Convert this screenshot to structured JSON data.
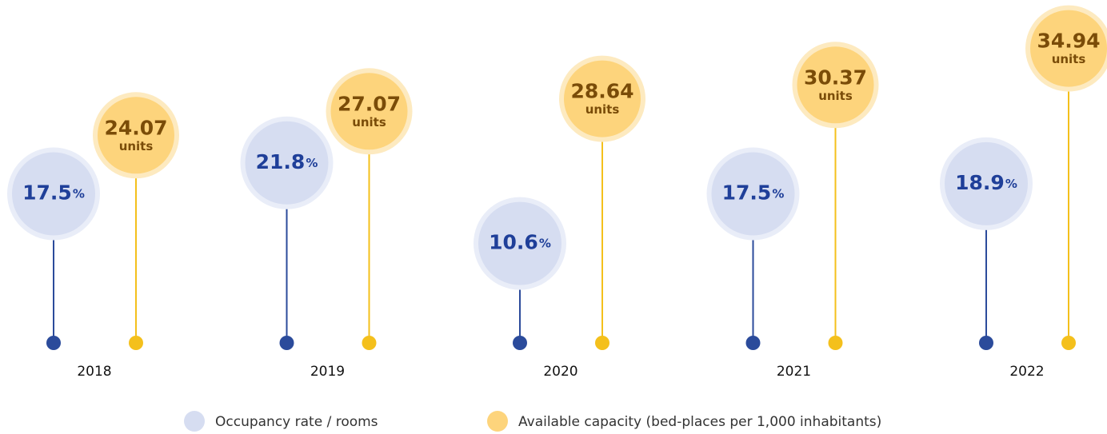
{
  "chart_data": {
    "type": "lollipop",
    "categories": [
      "2018",
      "2019",
      "2020",
      "2021",
      "2022"
    ],
    "series": [
      {
        "name": "Occupancy rate / rooms",
        "color": "#d6ddf1",
        "unit": "%",
        "values": [
          17.5,
          21.8,
          10.6,
          17.5,
          18.9
        ]
      },
      {
        "name": "Available capacity (bed-places per 1,000 inhabitants)",
        "color": "#fdd47c",
        "unit": "units",
        "values": [
          24.07,
          27.07,
          28.64,
          30.37,
          34.94
        ]
      }
    ]
  }
}
